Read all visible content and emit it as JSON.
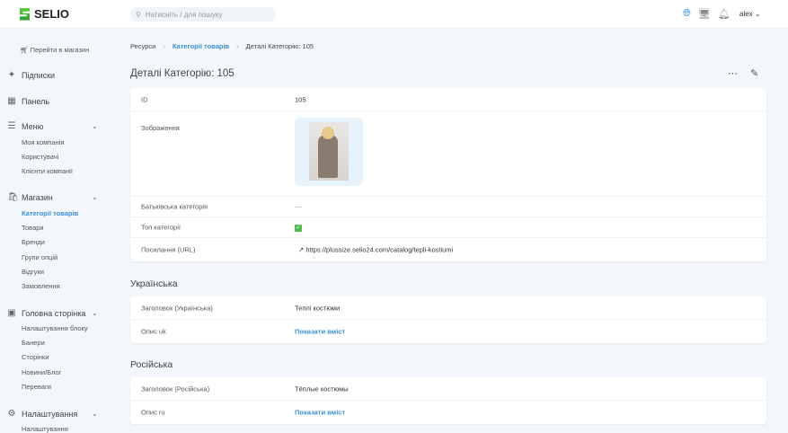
{
  "header": {
    "brand": "SELIO",
    "search_placeholder": "Натисніть / для пошуку",
    "user": "alex",
    "icons": [
      "globe-icon",
      "monitor-icon",
      "bell-icon"
    ]
  },
  "sidebar": {
    "shop_link": "Перейти в магазин",
    "items": [
      {
        "label": "Підписки"
      },
      {
        "label": "Панель"
      }
    ],
    "groups": [
      {
        "label": "Меню",
        "items": [
          "Моя компанія",
          "Користувачі",
          "Клієнти компанії"
        ]
      },
      {
        "label": "Магазин",
        "items": [
          "Категорії товарів",
          "Товари",
          "Бренди",
          "Групи опцій",
          "Відгуки",
          "Замовлення"
        ]
      },
      {
        "label": "Головна сторінка",
        "items": [
          "Налаштування блоку",
          "Банери",
          "Сторінки",
          "Новини/Блог",
          "Переваги"
        ]
      },
      {
        "label": "Налаштування",
        "items": [
          "Налаштування"
        ]
      }
    ],
    "active": "Категорії товарів"
  },
  "breadcrumb": [
    "Ресурси",
    "Категорії товарів",
    "Деталі Категорію: 105"
  ],
  "page_title": "Деталі Категорію: 105",
  "details": {
    "id_label": "ID",
    "id": "105",
    "image_label": "Зображення",
    "parent_label": "Батьківська категорія",
    "parent": "—",
    "top_label": "Топ категорії",
    "top": true,
    "url_label": "Посилання (URL)",
    "url": "https://plussize.selio24.com/catalog/tepli-kostiumi"
  },
  "sections": [
    {
      "title": "Українська",
      "title_label": "Заголовок (Українська)",
      "title_value": "Теплі костюми",
      "desc_label": "Опис uk",
      "desc_action": "Показати вміст"
    },
    {
      "title": "Російська",
      "title_label": "Заголовок (Російська)",
      "title_value": "Тёплые костюмы",
      "desc_label": "Опис ru",
      "desc_action": "Показати вміст"
    }
  ],
  "colors": {
    "accent": "#3a8fd6",
    "background": "#f3f6fa",
    "brand_green": "#3db53a"
  }
}
